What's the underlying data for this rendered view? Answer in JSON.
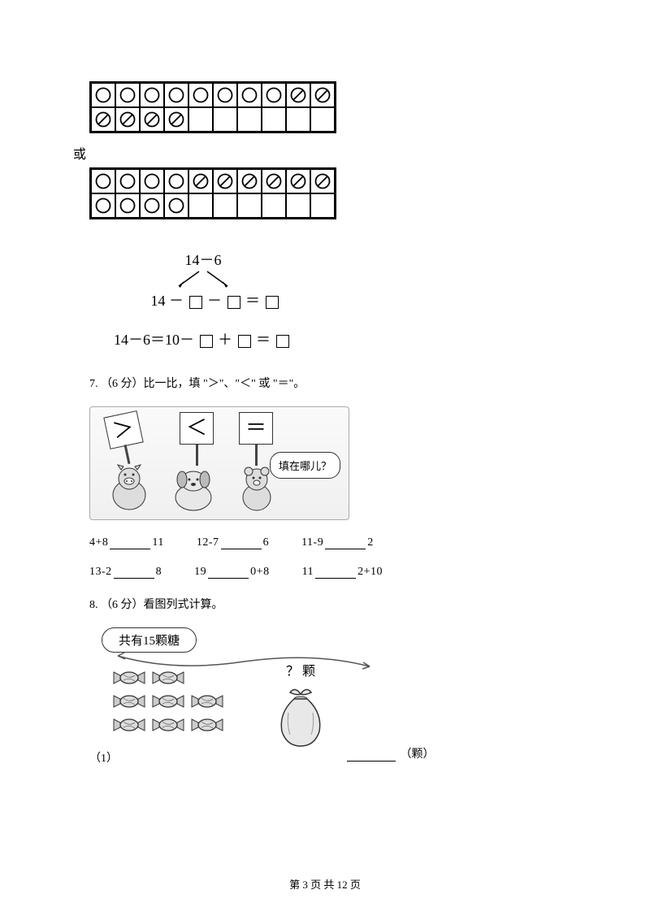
{
  "grid1": {
    "rows": [
      [
        "O",
        "O",
        "O",
        "O",
        "O",
        "O",
        "O",
        "O",
        "X",
        "X"
      ],
      [
        "X",
        "X",
        "X",
        "X",
        "",
        "",
        "",
        "",
        "",
        ""
      ]
    ]
  },
  "or_label": "或",
  "grid2": {
    "rows": [
      [
        "O",
        "O",
        "O",
        "O",
        "X",
        "X",
        "X",
        "X",
        "X",
        "X"
      ],
      [
        "O",
        "O",
        "O",
        "O",
        "",
        "",
        "",
        "",
        "",
        ""
      ]
    ]
  },
  "expr": {
    "top": "14－6",
    "mid_prefix": "14 －",
    "equals": "＝",
    "bottom_prefix": "14－6＝10－",
    "plus": "＋"
  },
  "q7": {
    "label": "7. （6 分）比一比，填 \"＞\"、\"＜\" 或 \"＝\"。",
    "signs": {
      "gt": "＞",
      "lt": "＜",
      "eq": "＝"
    },
    "bubble": "填在哪儿？",
    "rows": [
      [
        {
          "left": "4+8",
          "right": "11"
        },
        {
          "left": "12-7",
          "right": "6"
        },
        {
          "left": "11-9",
          "right": "2"
        }
      ],
      [
        {
          "left": "13-2",
          "right": "8"
        },
        {
          "left": "19",
          "right": "0+8"
        },
        {
          "left": "11",
          "right": "2+10"
        }
      ]
    ]
  },
  "q8": {
    "label": "8. （6 分）看图列式计算。",
    "banner": "共有15颗糖",
    "bag_label": "？ 颗",
    "item_num": "（1）",
    "unit": "（颗）"
  },
  "footer": {
    "text": "第 3 页 共 12 页"
  }
}
